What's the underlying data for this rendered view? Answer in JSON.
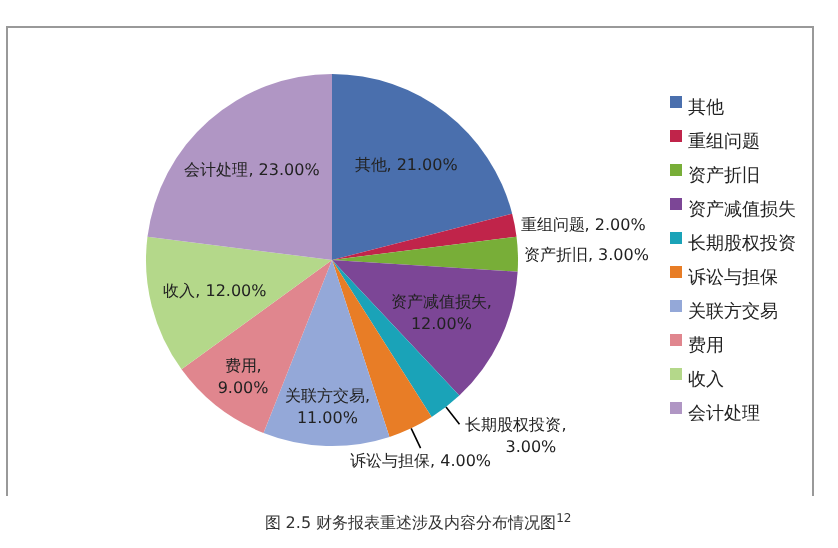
{
  "chart_data": {
    "type": "pie",
    "categories": [
      "其他",
      "重组问题",
      "资产折旧",
      "资产减值损失",
      "长期股权投资",
      "诉讼与担保",
      "关联方交易",
      "费用",
      "收入",
      "会计处理"
    ],
    "values": [
      21,
      2,
      3,
      12,
      3,
      4,
      11,
      9,
      12,
      23
    ],
    "value_labels": [
      "其他, 21.00%",
      "重组问题, 2.00%",
      "资产折旧, 3.00%",
      "资产减值损失, 12.00%",
      "长期股权投资, 3.00%",
      "诉讼与担保, 4.00%",
      "关联方交易, 11.00%",
      "费用, 9.00%",
      "收入, 12.00%",
      "会计处理, 23.00%"
    ],
    "colors": [
      "#4a6fad",
      "#c0244a",
      "#78ae38",
      "#7c4696",
      "#1aa3b8",
      "#e87d26",
      "#94a8d8",
      "#e0868e",
      "#b4d88a",
      "#b096c4"
    ],
    "legend": "right",
    "annotations": [
      "图 2.5  财务报表重述涉及内容分布情况图$^{12}$"
    ]
  }
}
